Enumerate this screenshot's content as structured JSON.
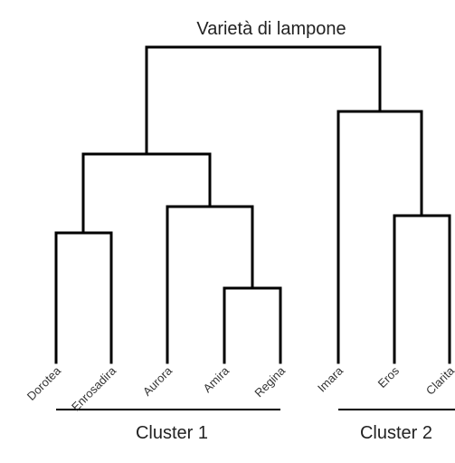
{
  "title": "Varietà di lampone",
  "leaves": [
    "Dorotea",
    "Enrosadira",
    "Aurora",
    "Amira",
    "Regina",
    "Imara",
    "Eros",
    "Clarita"
  ],
  "clusters": [
    "Cluster 1",
    "Cluster 2"
  ]
}
